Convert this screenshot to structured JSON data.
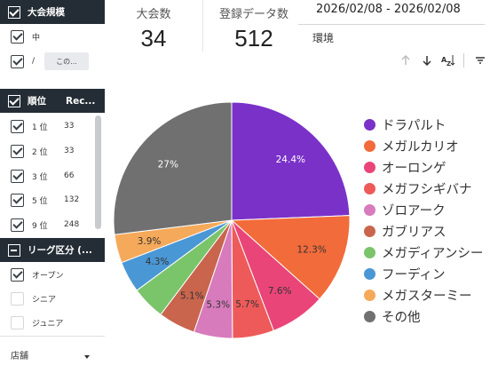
{
  "filters": {
    "tournament_size": {
      "title": "大会規模",
      "options": [
        {
          "label": "中",
          "checked": true
        },
        {
          "label": "/",
          "checked": true,
          "only_label": "この..."
        }
      ]
    },
    "rank": {
      "title": "順位",
      "count_header": "Rec...",
      "rows": [
        {
          "label": "1 位",
          "count": "33",
          "checked": true
        },
        {
          "label": "2 位",
          "count": "33",
          "checked": true
        },
        {
          "label": "3 位",
          "count": "66",
          "checked": true
        },
        {
          "label": "5 位",
          "count": "132",
          "checked": true
        },
        {
          "label": "9 位",
          "count": "248",
          "checked": true
        }
      ]
    },
    "league": {
      "title": "リーグ区分 (...",
      "options": [
        {
          "label": "オープン",
          "checked": true
        },
        {
          "label": "シニア",
          "checked": false
        },
        {
          "label": "ジュニア",
          "checked": false
        }
      ]
    },
    "store": {
      "label": "店舗"
    }
  },
  "kpis": [
    {
      "title": "大会数",
      "value": "34"
    },
    {
      "title": "登録データ数",
      "value": "512"
    }
  ],
  "date_range": "2026/02/08 - 2026/02/08",
  "environment_label": "環境",
  "toolbar_icons": [
    "sort-ascending-icon",
    "sort-descending-icon",
    "sort-az-icon",
    "filter-icon"
  ],
  "chart_data": {
    "type": "pie",
    "slices": [
      {
        "name": "ドラパルト",
        "value": 24.4,
        "label": "24.4%",
        "color": "#7a31c8"
      },
      {
        "name": "メガルカリオ",
        "value": 12.3,
        "label": "12.3%",
        "color": "#f26b3a"
      },
      {
        "name": "オーロンゲ",
        "value": 7.6,
        "label": "7.6%",
        "color": "#e94578"
      },
      {
        "name": "メガフシギバナ",
        "value": 5.7,
        "label": "5.7%",
        "color": "#ee5a5a"
      },
      {
        "name": "ゾロアーク",
        "value": 5.3,
        "label": "5.3%",
        "color": "#d77bbc"
      },
      {
        "name": "ガブリアス",
        "value": 5.1,
        "label": "5.1%",
        "color": "#c9654d"
      },
      {
        "name": "メガディアンシー",
        "value": 4.6,
        "label": "",
        "color": "#7ac46a"
      },
      {
        "name": "フーディン",
        "value": 4.3,
        "label": "4.3%",
        "color": "#4a97d5"
      },
      {
        "name": "メガスターミー",
        "value": 3.9,
        "label": "3.9%",
        "color": "#f5a95a"
      },
      {
        "name": "その他",
        "value": 27,
        "label": "27%",
        "color": "#707070"
      }
    ],
    "legend_position": "right"
  }
}
